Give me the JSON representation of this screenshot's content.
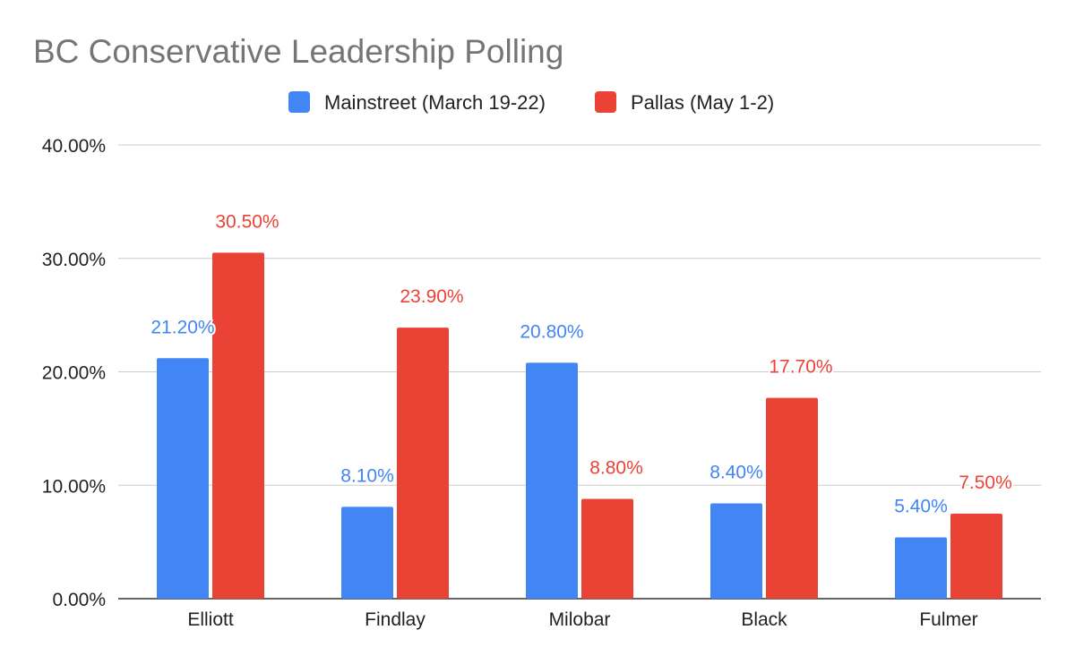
{
  "chart_data": {
    "type": "bar",
    "title": "BC Conservative Leadership Polling",
    "categories": [
      "Elliott",
      "Findlay",
      "Milobar",
      "Black",
      "Fulmer"
    ],
    "series": [
      {
        "name": "Mainstreet (March 19-22)",
        "color": "#4285f4",
        "values": [
          21.2,
          8.1,
          20.8,
          8.4,
          5.4
        ],
        "labels": [
          "21.20%",
          "8.10%",
          "20.80%",
          "8.40%",
          "5.40%"
        ]
      },
      {
        "name": "Pallas (May 1-2)",
        "color": "#ea4335",
        "values": [
          30.5,
          23.9,
          8.8,
          17.7,
          7.5
        ],
        "labels": [
          "30.50%",
          "23.90%",
          "8.80%",
          "17.70%",
          "7.50%"
        ]
      }
    ],
    "ylim": [
      0,
      40
    ],
    "yticks": [
      {
        "value": 0,
        "label": "0.00%"
      },
      {
        "value": 10,
        "label": "10.00%"
      },
      {
        "value": 20,
        "label": "20.00%"
      },
      {
        "value": 30,
        "label": "30.00%"
      },
      {
        "value": 40,
        "label": "40.00%"
      }
    ],
    "grid": true,
    "legend": "top-center"
  }
}
